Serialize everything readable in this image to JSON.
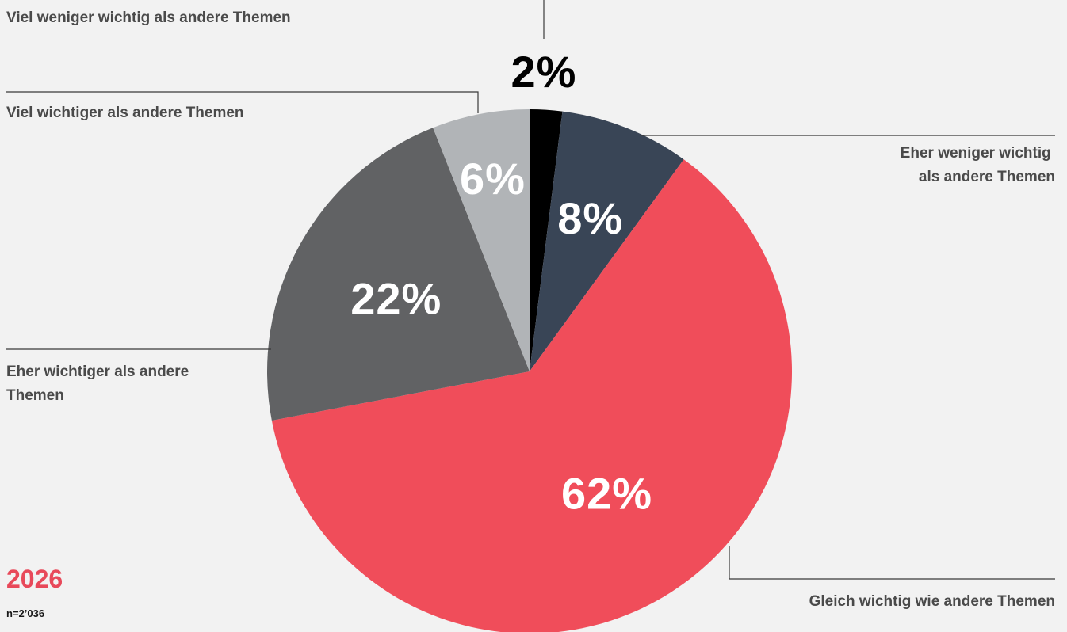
{
  "chart_data": {
    "type": "pie",
    "categories": [
      "Viel weniger wichtig als andere Themen",
      "Eher weniger wichtig als andere Themen",
      "Gleich wichtig wie andere Themen",
      "Eher wichtiger als andere Themen",
      "Viel wichtiger als andere Themen"
    ],
    "values": [
      2,
      8,
      62,
      22,
      6
    ],
    "value_labels": [
      "2%",
      "8%",
      "62%",
      "22%",
      "6%"
    ],
    "colors": [
      "#000000",
      "#394556",
      "#f04d5a",
      "#616264",
      "#b1b4b7"
    ],
    "label_colors": [
      "#000000",
      "#ffffff",
      "#ffffff",
      "#ffffff",
      "#ffffff"
    ],
    "start": "12 o'clock",
    "direction": "clockwise",
    "year": "2026",
    "sample": "n=2’036"
  },
  "accent_color": "#e8495a"
}
